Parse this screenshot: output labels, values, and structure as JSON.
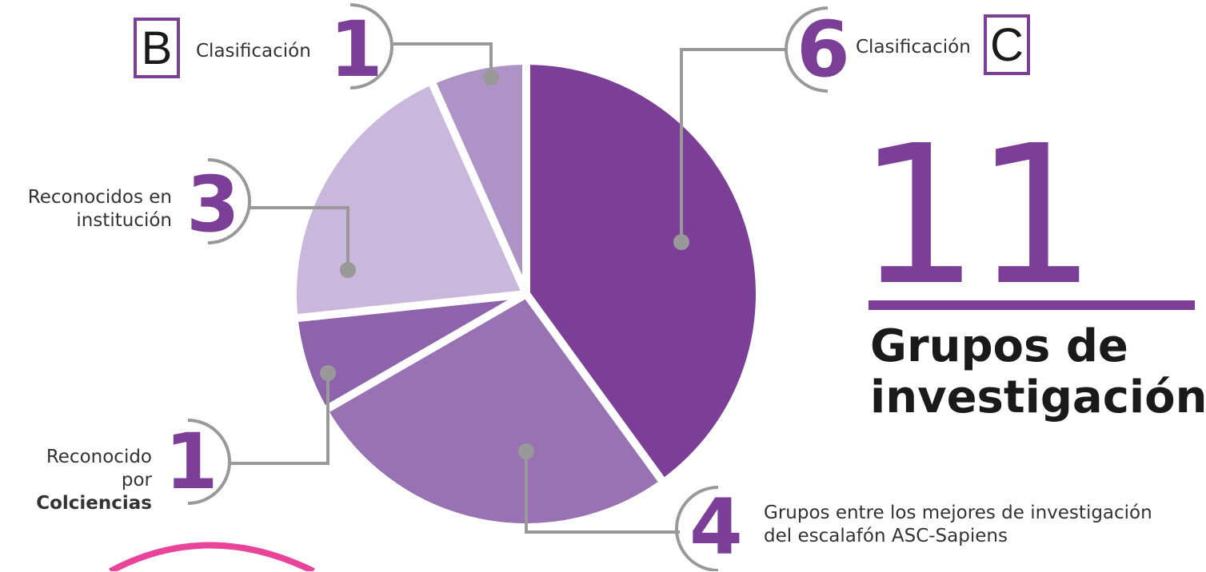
{
  "chart_data": {
    "type": "pie",
    "slices": [
      {
        "value": 6,
        "label": "Clasificación",
        "tag": "C",
        "color": "#7b3f98"
      },
      {
        "value": 4,
        "label": "Grupos entre los mejores de investigación del escalafón ASC-Sapiens",
        "color": "#9872b2"
      },
      {
        "value": 1,
        "label": "Reconocido por Colciencias",
        "color": "#8d63ab"
      },
      {
        "value": 3,
        "label": "Reconocidos en institución",
        "color": "#c9b8db"
      },
      {
        "value": 1,
        "label": "Clasificación",
        "tag": "B",
        "color": "#ae93c6"
      }
    ]
  },
  "callouts": {
    "b": {
      "letter": "B",
      "label": "Clasificación",
      "number": "1"
    },
    "c": {
      "letter": "C",
      "label": "Clasificación",
      "number": "6"
    },
    "institucion": {
      "line1": "Reconocidos en",
      "line2": "institución",
      "number": "3"
    },
    "colciencias": {
      "line1": "Reconocido",
      "line2_prefix": "por ",
      "line2_bold": "Colciencias",
      "number": "1"
    },
    "sapiens": {
      "line1": "Grupos entre los mejores de investigación",
      "line2": "del escalafón ASC-Sapiens",
      "number": "4"
    }
  },
  "total": {
    "number": "11",
    "label_line1": "Grupos de",
    "label_line2": "investigación"
  },
  "colors": {
    "accent": "#7b3f98",
    "connector": "#999999",
    "arc_pink": "#e8459a"
  }
}
